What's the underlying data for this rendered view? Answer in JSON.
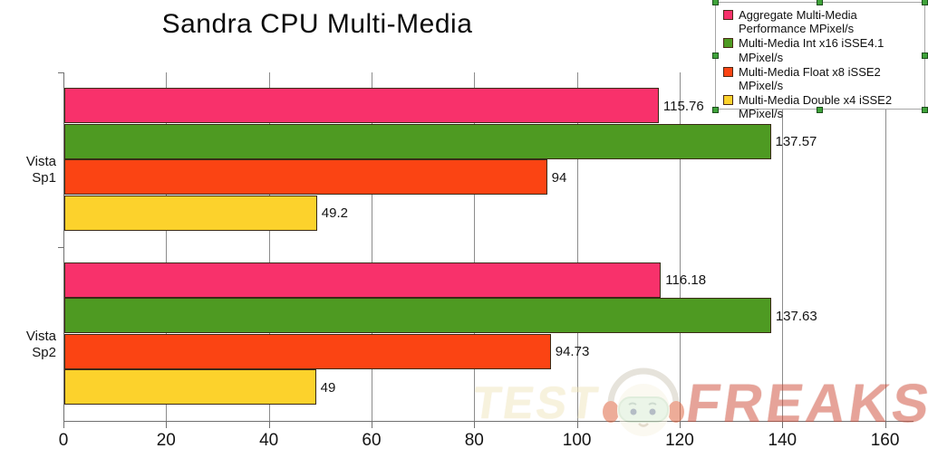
{
  "title": "Sandra CPU Multi-Media",
  "chart_data": {
    "type": "bar",
    "orientation": "horizontal",
    "title": "Sandra CPU Multi-Media",
    "categories": [
      "Vista Sp1",
      "Vista Sp2"
    ],
    "series": [
      {
        "name": "Aggregate Multi-Media Performance MPixel/s",
        "color": "#f8316b",
        "values": [
          115.76,
          116.18
        ],
        "labels": [
          "115.76",
          "116.18"
        ]
      },
      {
        "name": "Multi-Media Int x16 iSSE4.1 MPixel/s",
        "color": "#4e9a22",
        "values": [
          137.57,
          137.63
        ],
        "labels": [
          "137.57",
          "137.63"
        ]
      },
      {
        "name": "Multi-Media Float x8 iSSE2 MPixel/s",
        "color": "#fb4413",
        "values": [
          94,
          94.73
        ],
        "labels": [
          "94",
          "94.73"
        ]
      },
      {
        "name": "Multi-Media Double x4 iSSE2 MPixel/s",
        "color": "#fcd22c",
        "values": [
          49.2,
          49
        ],
        "labels": [
          "49.2",
          "49"
        ]
      }
    ],
    "xlabel": "",
    "ylabel": "",
    "xlim": [
      0,
      160
    ],
    "xticks": [
      0,
      20,
      40,
      60,
      80,
      100,
      120,
      140,
      160
    ],
    "grid": true,
    "legend_position": "top-right"
  },
  "watermark": {
    "left_text": "TEST",
    "right_text": "FREAKS",
    "left_color": "#f1e6bd",
    "right_color": "#cf4a35"
  },
  "colors": {
    "grid": "#8c8c8c",
    "axis": "#707070",
    "bar_border": "#3a2a16",
    "legend_border": "#a6a6a6",
    "selection_handle": "#3fa33a"
  }
}
